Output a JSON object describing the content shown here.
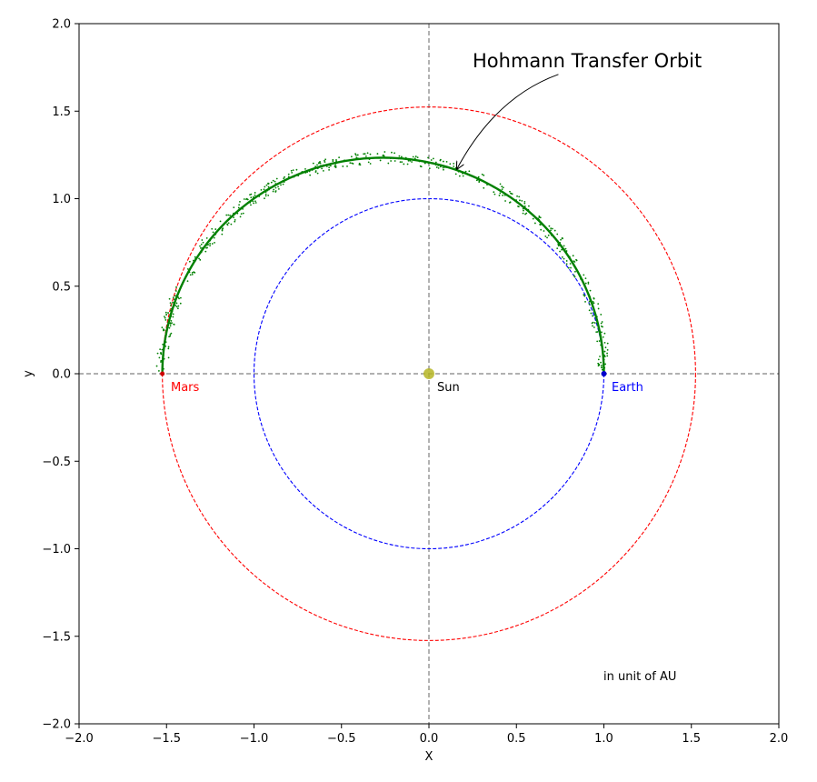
{
  "chart_data": {
    "type": "line",
    "xlabel": "X",
    "ylabel": "y",
    "xlim": [
      -2.0,
      2.0
    ],
    "ylim": [
      -2.0,
      2.0
    ],
    "xticks": [
      "−2.0",
      "−1.5",
      "−1.0",
      "−0.5",
      "0.0",
      "0.5",
      "1.0",
      "1.5",
      "2.0"
    ],
    "yticks": [
      "−2.0",
      "−1.5",
      "−1.0",
      "−0.5",
      "0.0",
      "0.5",
      "1.0",
      "1.5",
      "2.0"
    ],
    "xtick_values": [
      -2.0,
      -1.5,
      -1.0,
      -0.5,
      0.0,
      0.5,
      1.0,
      1.5,
      2.0
    ],
    "ytick_values": [
      -2.0,
      -1.5,
      -1.0,
      -0.5,
      0.0,
      0.5,
      1.0,
      1.5,
      2.0
    ],
    "grid": false,
    "reference_lines": {
      "x": 0,
      "y": 0,
      "color": "#808080"
    },
    "earth_orbit": {
      "radius": 1.0,
      "color": "#0000ff"
    },
    "mars_orbit": {
      "radius": 1.524,
      "color": "#ff0000"
    },
    "transfer_orbit": {
      "color": "#008000",
      "semi_major_axis": 1.262,
      "center_x": -0.262,
      "semi_minor_axis": 1.234,
      "points": [
        [
          1.0,
          0.0
        ],
        [
          0.96,
          0.3
        ],
        [
          0.86,
          0.6
        ],
        [
          0.62,
          0.9
        ],
        [
          0.3,
          1.12
        ],
        [
          0.0,
          1.21
        ],
        [
          -0.26,
          1.234
        ],
        [
          -0.6,
          1.18
        ],
        [
          -0.95,
          0.98
        ],
        [
          -1.2,
          0.74
        ],
        [
          -1.4,
          0.5
        ],
        [
          -1.5,
          0.2
        ],
        [
          -1.524,
          0.0
        ]
      ]
    },
    "sun": {
      "label": "Sun",
      "x": 0.0,
      "y": 0.0,
      "color": "#b5b525"
    },
    "earth": {
      "label": "Earth",
      "x": 1.0,
      "y": 0.0,
      "color": "#0000cc"
    },
    "mars": {
      "label": "Mars",
      "x": -1.524,
      "y": 0.0,
      "color": "#cc0000"
    },
    "annotation": {
      "text": "Hohmann Transfer Orbit",
      "text_x": 0.25,
      "text_y": 1.76,
      "arrow_to_x": 0.16,
      "arrow_to_y": 1.17
    },
    "units_note": {
      "text": "in unit of AU",
      "x": 1.0,
      "y": -1.73
    }
  }
}
